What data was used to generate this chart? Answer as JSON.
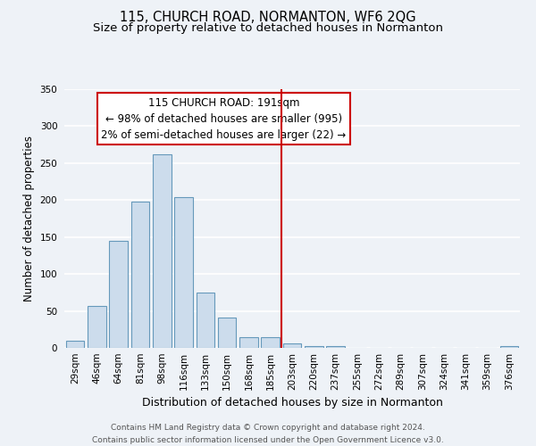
{
  "title": "115, CHURCH ROAD, NORMANTON, WF6 2QG",
  "subtitle": "Size of property relative to detached houses in Normanton",
  "xlabel": "Distribution of detached houses by size in Normanton",
  "ylabel": "Number of detached properties",
  "bar_labels": [
    "29sqm",
    "46sqm",
    "64sqm",
    "81sqm",
    "98sqm",
    "116sqm",
    "133sqm",
    "150sqm",
    "168sqm",
    "185sqm",
    "203sqm",
    "220sqm",
    "237sqm",
    "255sqm",
    "272sqm",
    "289sqm",
    "307sqm",
    "324sqm",
    "341sqm",
    "359sqm",
    "376sqm"
  ],
  "bar_values": [
    10,
    57,
    145,
    198,
    262,
    204,
    75,
    41,
    14,
    14,
    6,
    3,
    2,
    0,
    0,
    0,
    0,
    0,
    0,
    0,
    2
  ],
  "bar_color": "#ccdcec",
  "bar_edge_color": "#6699bb",
  "ylim": [
    0,
    350
  ],
  "yticks": [
    0,
    50,
    100,
    150,
    200,
    250,
    300,
    350
  ],
  "vline_idx": 9.5,
  "vline_color": "#cc0000",
  "annotation_title": "115 CHURCH ROAD: 191sqm",
  "annotation_line1": "← 98% of detached houses are smaller (995)",
  "annotation_line2": "2% of semi-detached houses are larger (22) →",
  "annotation_box_color": "#ffffff",
  "annotation_box_edge": "#cc0000",
  "footer_line1": "Contains HM Land Registry data © Crown copyright and database right 2024.",
  "footer_line2": "Contains public sector information licensed under the Open Government Licence v3.0.",
  "background_color": "#eef2f7",
  "grid_color": "#ffffff",
  "title_fontsize": 10.5,
  "subtitle_fontsize": 9.5,
  "ylabel_fontsize": 8.5,
  "xlabel_fontsize": 9,
  "tick_fontsize": 7.5,
  "annotation_fontsize": 8.5,
  "footer_fontsize": 6.5
}
